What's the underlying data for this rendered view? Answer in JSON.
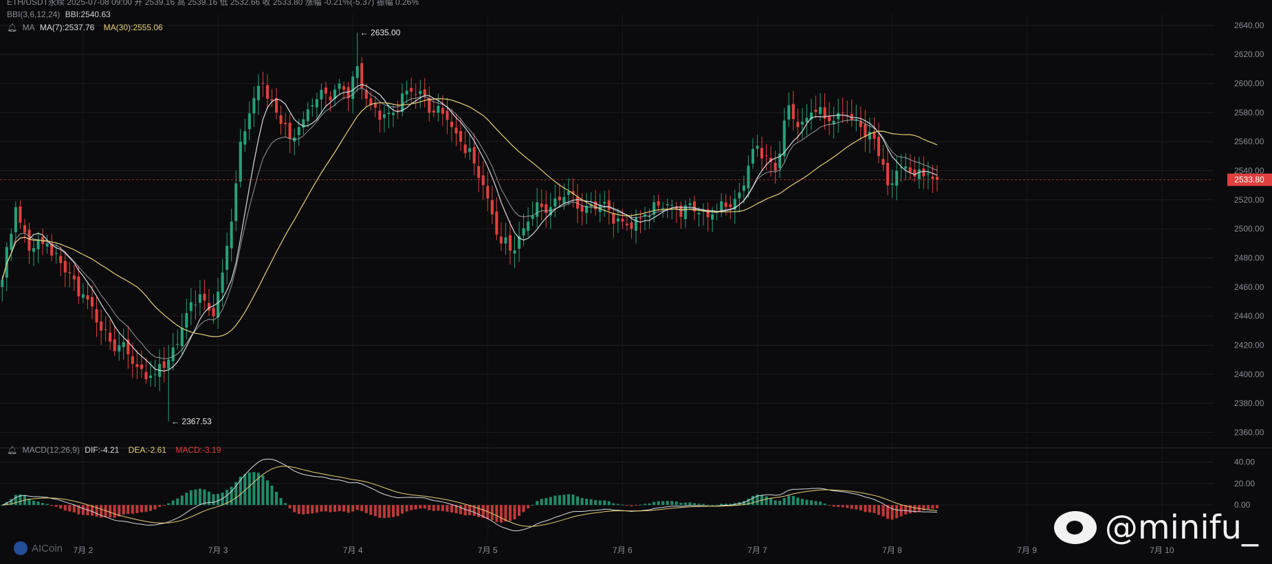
{
  "header": {
    "line1": "ETH/USDT永续  2025-07-08 09:00  开 2539.16  高 2539.16  低 2532.66  收 2533.80  涨幅 -0.21%(-5.37)  振幅 0.26%",
    "bbi": {
      "name": "BBI(3,6,12,24)",
      "value_label": "BBI:2540.63"
    },
    "ma": {
      "name": "MA",
      "ma7_label": "MA(7):2537.76",
      "ma30_label": "MA(30):2555.06"
    },
    "macd": {
      "name": "MACD(12,26,9)",
      "dif_label": "DIF:-4.21",
      "dea_label": "DEA:-2.61",
      "macd_label": "MACD:-3.19"
    }
  },
  "price_axis": {
    "ticks": [
      "2640.00",
      "2620.00",
      "2600.00",
      "2580.00",
      "2560.00",
      "2540.00",
      "2520.00",
      "2500.00",
      "2480.00",
      "2460.00",
      "2440.00",
      "2420.00",
      "2400.00",
      "2380.00",
      "2360.00"
    ],
    "current_price_label": "2533.80",
    "current_price": 2533.8
  },
  "macd_axis": {
    "ticks": [
      "40.00",
      "20.00",
      "0.00"
    ]
  },
  "time_axis": {
    "labels": [
      "7月 2",
      "7月 3",
      "7月 4",
      "7月 5",
      "7月 6",
      "7月 7",
      "7月 8",
      "7月 9",
      "7月 10"
    ]
  },
  "annotations": {
    "high_label": "← 2635.00",
    "low_label": "← 2367.53"
  },
  "watermark": {
    "text": "@minifu_",
    "platform_icon": "weibo-icon"
  },
  "logo": {
    "text": "AICoin",
    "icon": "aicoin-logo-icon"
  },
  "colors": {
    "up": "#26a17b",
    "down": "#e0413f",
    "ma7": "#d9dce2",
    "ma30": "#e6d27a",
    "bbi": "#b9bdc6",
    "price_tag": "#e0413f"
  },
  "chart_data": {
    "type": "candlestick",
    "symbol": "ETH/USDT",
    "interval": "1h",
    "ylim": [
      2355,
      2648
    ],
    "macd_ylim": [
      -35,
      48
    ],
    "x_day_ticks": [
      {
        "label": "7月 2",
        "index": 18
      },
      {
        "label": "7月 3",
        "index": 48
      },
      {
        "label": "7月 4",
        "index": 78
      },
      {
        "label": "7月 5",
        "index": 108
      },
      {
        "label": "7月 6",
        "index": 138
      },
      {
        "label": "7月 7",
        "index": 168
      },
      {
        "label": "7月 8",
        "index": 198
      },
      {
        "label": "7月 9",
        "index": 228
      },
      {
        "label": "7月 10",
        "index": 258
      }
    ],
    "x_slots": 270,
    "anchors": [
      [
        0,
        2465
      ],
      [
        3,
        2515
      ],
      [
        6,
        2485
      ],
      [
        10,
        2490
      ],
      [
        14,
        2470
      ],
      [
        18,
        2455
      ],
      [
        22,
        2430
      ],
      [
        26,
        2420
      ],
      [
        30,
        2405
      ],
      [
        34,
        2400
      ],
      [
        37,
        2410
      ],
      [
        40,
        2432
      ],
      [
        44,
        2455
      ],
      [
        47,
        2440
      ],
      [
        49,
        2470
      ],
      [
        51,
        2505
      ],
      [
        53,
        2560
      ],
      [
        56,
        2590
      ],
      [
        58,
        2600
      ],
      [
        61,
        2580
      ],
      [
        64,
        2562
      ],
      [
        66,
        2570
      ],
      [
        69,
        2585
      ],
      [
        72,
        2593
      ],
      [
        75,
        2600
      ],
      [
        77,
        2590
      ],
      [
        79,
        2612
      ],
      [
        82,
        2585
      ],
      [
        84,
        2575
      ],
      [
        86,
        2580
      ],
      [
        90,
        2595
      ],
      [
        94,
        2592
      ],
      [
        96,
        2580
      ],
      [
        99,
        2575
      ],
      [
        102,
        2560
      ],
      [
        105,
        2545
      ],
      [
        107,
        2530
      ],
      [
        109,
        2510
      ],
      [
        111,
        2490
      ],
      [
        113,
        2485
      ],
      [
        115,
        2495
      ],
      [
        117,
        2505
      ],
      [
        120,
        2515
      ],
      [
        125,
        2522
      ],
      [
        130,
        2516
      ],
      [
        135,
        2513
      ],
      [
        138,
        2505
      ],
      [
        140,
        2500
      ],
      [
        143,
        2510
      ],
      [
        146,
        2516
      ],
      [
        150,
        2514
      ],
      [
        154,
        2512
      ],
      [
        158,
        2510
      ],
      [
        162,
        2515
      ],
      [
        164,
        2525
      ],
      [
        167,
        2555
      ],
      [
        170,
        2550
      ],
      [
        172,
        2540
      ],
      [
        175,
        2585
      ],
      [
        177,
        2570
      ],
      [
        180,
        2580
      ],
      [
        184,
        2574
      ],
      [
        187,
        2580
      ],
      [
        189,
        2575
      ],
      [
        191,
        2570
      ],
      [
        194,
        2562
      ],
      [
        197,
        2530
      ],
      [
        199,
        2540
      ],
      [
        201,
        2543
      ],
      [
        203,
        2536
      ],
      [
        206,
        2538
      ],
      [
        208,
        2533.8
      ]
    ],
    "last_index": 208,
    "high_point": {
      "index": 79,
      "value": 2635.0
    },
    "low_point": {
      "index": 37,
      "value": 2367.53
    },
    "series_lines": [
      {
        "name": "MA(7)",
        "window": 7
      },
      {
        "name": "MA(30)",
        "window": 30
      },
      {
        "name": "BBI(3,6,12,24)",
        "window": "bbi"
      }
    ],
    "macd": {
      "fast": 12,
      "slow": 26,
      "signal": 9,
      "dif": -4.21,
      "dea": -2.61,
      "hist": -3.19
    }
  }
}
